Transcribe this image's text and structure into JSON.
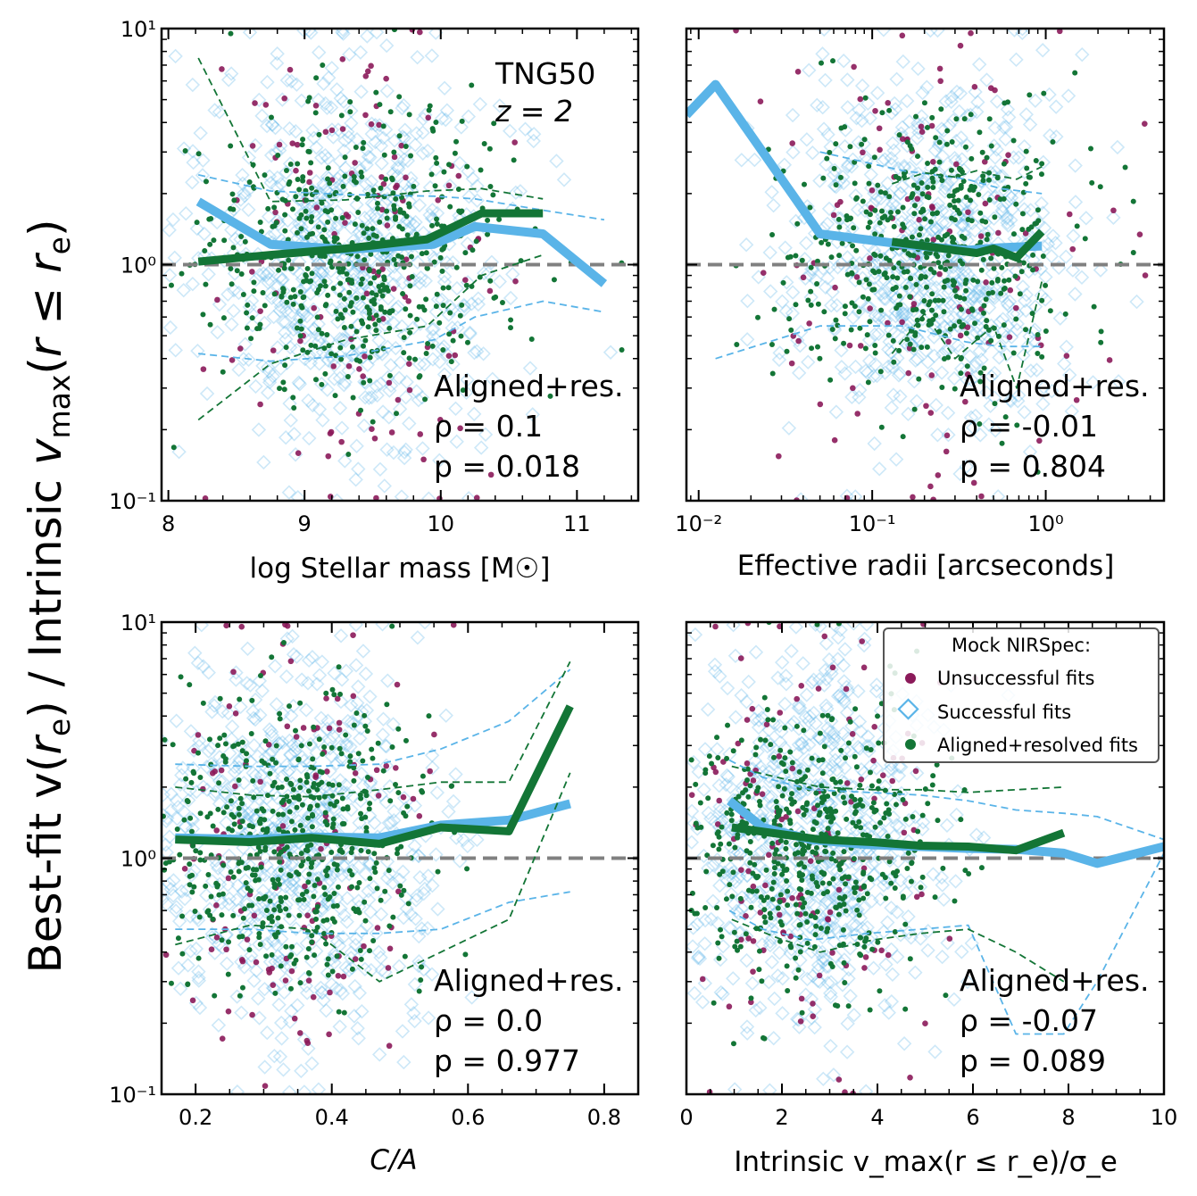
{
  "figure": {
    "ylabel": "Best-fit v(r_e) / Intrinsic v_max(r ≤ r_e)",
    "colors": {
      "unsuccessful": "#8b1a5a",
      "successful": "#5ab4e8",
      "aligned": "#137536",
      "reference": "#808080"
    },
    "legend": {
      "title": "Mock NIRSpec:",
      "items": [
        "Unsuccessful fits",
        "Successful fits",
        "Aligned+resolved fits"
      ]
    }
  },
  "chart_data": [
    {
      "type": "scatter",
      "panel": "top-left",
      "xlabel": "log Stellar mass [M☉]",
      "xscale": "linear",
      "xlim": [
        7.95,
        11.45
      ],
      "xticks": [
        "8",
        "9",
        "10",
        "11"
      ],
      "yscale": "log",
      "ylim": [
        0.1,
        10
      ],
      "yticks": [
        "10⁻¹",
        "10⁰",
        "10¹"
      ],
      "reference_line": 1.0,
      "annotation_top": [
        "TNG50",
        "z = 2"
      ],
      "stats": {
        "label": "Aligned+res.",
        "rho": "ρ = 0.1",
        "p": "p = 0.018"
      },
      "cloud": {
        "x_center": 9.35,
        "x_spread": 0.55,
        "x_range": [
          8.0,
          11.4
        ]
      },
      "series": [
        {
          "name": "Successful fits median",
          "x": [
            8.22,
            8.75,
            9.3,
            9.95,
            10.25,
            10.75,
            11.2
          ],
          "y": [
            1.85,
            1.22,
            1.16,
            1.22,
            1.45,
            1.35,
            0.83
          ]
        },
        {
          "name": "Successful fits 16th pct",
          "x": [
            8.22,
            8.75,
            9.3,
            9.95,
            10.25,
            10.75,
            11.2
          ],
          "y": [
            0.42,
            0.39,
            0.41,
            0.48,
            0.6,
            0.7,
            0.63
          ]
        },
        {
          "name": "Successful fits 84th pct",
          "x": [
            8.22,
            8.75,
            9.3,
            9.95,
            10.25,
            10.75,
            11.2
          ],
          "y": [
            2.4,
            2.05,
            1.98,
            1.95,
            1.9,
            1.7,
            1.55
          ]
        },
        {
          "name": "Aligned median",
          "x": [
            8.22,
            8.75,
            9.3,
            9.9,
            10.3,
            10.75
          ],
          "y": [
            1.03,
            1.1,
            1.17,
            1.28,
            1.65,
            1.65
          ]
        },
        {
          "name": "Aligned 16th pct",
          "x": [
            8.22,
            8.75,
            9.3,
            9.9,
            10.3,
            10.75
          ],
          "y": [
            0.22,
            0.38,
            0.48,
            0.55,
            0.9,
            1.1
          ]
        },
        {
          "name": "Aligned 84th pct",
          "x": [
            8.22,
            8.75,
            9.3,
            9.9,
            10.3,
            10.75
          ],
          "y": [
            7.5,
            1.85,
            1.88,
            2.05,
            2.1,
            1.9
          ]
        }
      ]
    },
    {
      "type": "scatter",
      "panel": "top-right",
      "xlabel": "Effective radii [arcseconds]",
      "xscale": "log",
      "xlim": [
        0.0085,
        4.8
      ],
      "xticks": [
        "10⁻²",
        "10⁻¹",
        "10⁰"
      ],
      "yscale": "log",
      "ylim": [
        0.1,
        10
      ],
      "yticks": [],
      "reference_line": 1.0,
      "stats": {
        "label": "Aligned+res.",
        "rho": "ρ = -0.01",
        "p": "p = 0.804"
      },
      "cloud": {
        "x_center": 0.22,
        "x_spread": 0.42,
        "x_range": [
          0.009,
          4.5
        ]
      },
      "series": [
        {
          "name": "Successful fits median",
          "x": [
            0.0085,
            0.0125,
            0.05,
            0.15,
            0.35,
            0.55,
            0.95
          ],
          "y": [
            4.3,
            5.8,
            1.35,
            1.22,
            1.15,
            1.18,
            1.2
          ]
        },
        {
          "name": "Successful fits 16th pct",
          "x": [
            0.0125,
            0.05,
            0.15,
            0.35,
            0.55,
            0.95
          ],
          "y": [
            0.4,
            0.55,
            0.55,
            0.47,
            0.45,
            0.45
          ]
        },
        {
          "name": "Successful fits 84th pct",
          "x": [
            0.05,
            0.15,
            0.35,
            0.55,
            0.95
          ],
          "y": [
            3.0,
            2.5,
            2.3,
            2.1,
            2.0
          ]
        },
        {
          "name": "Aligned median",
          "x": [
            0.13,
            0.2,
            0.3,
            0.4,
            0.5,
            0.68,
            0.95
          ],
          "y": [
            1.25,
            1.2,
            1.15,
            1.12,
            1.17,
            1.07,
            1.38
          ]
        },
        {
          "name": "Aligned 16th pct",
          "x": [
            0.13,
            0.2,
            0.3,
            0.4,
            0.5,
            0.68,
            0.95
          ],
          "y": [
            0.42,
            0.62,
            0.4,
            0.48,
            0.55,
            0.3,
            0.85
          ]
        },
        {
          "name": "Aligned 84th pct",
          "x": [
            0.13,
            0.2,
            0.3,
            0.4,
            0.5,
            0.68,
            0.95
          ],
          "y": [
            2.2,
            2.45,
            2.35,
            2.5,
            2.4,
            2.3,
            2.6
          ]
        }
      ]
    },
    {
      "type": "scatter",
      "panel": "bottom-left",
      "xlabel": "C/A",
      "xscale": "linear",
      "xlim": [
        0.15,
        0.85
      ],
      "xticks": [
        "0.2",
        "0.4",
        "0.6",
        "0.8"
      ],
      "yscale": "log",
      "ylim": [
        0.1,
        10
      ],
      "yticks": [
        "10⁻¹",
        "10⁰",
        "10¹"
      ],
      "reference_line": 1.0,
      "stats": {
        "label": "Aligned+res.",
        "rho": "ρ = 0.0",
        "p": "p = 0.977"
      },
      "cloud": {
        "x_center": 0.35,
        "x_spread": 0.1,
        "x_range": [
          0.15,
          0.84
        ]
      },
      "series": [
        {
          "name": "Successful fits median",
          "x": [
            0.17,
            0.28,
            0.37,
            0.47,
            0.56,
            0.66,
            0.75
          ],
          "y": [
            1.22,
            1.2,
            1.23,
            1.22,
            1.38,
            1.45,
            1.7
          ]
        },
        {
          "name": "Successful fits 16th pct",
          "x": [
            0.17,
            0.28,
            0.37,
            0.47,
            0.56,
            0.66,
            0.75
          ],
          "y": [
            0.5,
            0.5,
            0.48,
            0.48,
            0.5,
            0.65,
            0.72
          ]
        },
        {
          "name": "Successful fits 84th pct",
          "x": [
            0.17,
            0.28,
            0.37,
            0.47,
            0.56,
            0.66,
            0.75
          ],
          "y": [
            2.5,
            2.45,
            2.45,
            2.5,
            2.9,
            3.8,
            6.3
          ]
        },
        {
          "name": "Aligned median",
          "x": [
            0.17,
            0.28,
            0.37,
            0.47,
            0.56,
            0.66,
            0.75
          ],
          "y": [
            1.2,
            1.17,
            1.22,
            1.15,
            1.35,
            1.3,
            4.4
          ]
        },
        {
          "name": "Aligned 16th pct",
          "x": [
            0.17,
            0.28,
            0.37,
            0.47,
            0.56,
            0.66,
            0.75
          ],
          "y": [
            0.43,
            0.52,
            0.5,
            0.3,
            0.4,
            0.55,
            2.3
          ]
        },
        {
          "name": "Aligned 84th pct",
          "x": [
            0.17,
            0.28,
            0.37,
            0.47,
            0.56,
            0.66,
            0.75
          ],
          "y": [
            2.0,
            1.85,
            1.82,
            1.95,
            2.1,
            2.1,
            6.8
          ]
        }
      ]
    },
    {
      "type": "scatter",
      "panel": "bottom-right",
      "xlabel": "Intrinsic v_max(r ≤ r_e)/σ_e",
      "xscale": "linear",
      "xlim": [
        0,
        10
      ],
      "xticks": [
        "0",
        "2",
        "4",
        "6",
        "8",
        "10"
      ],
      "yscale": "log",
      "ylim": [
        0.1,
        10
      ],
      "yticks": [],
      "reference_line": 1.0,
      "stats": {
        "label": "Aligned+res.",
        "rho": "ρ = -0.07",
        "p": "p = 0.089"
      },
      "cloud": {
        "x_center": 2.6,
        "x_spread": 1.3,
        "x_range": [
          0.1,
          9.9
        ]
      },
      "series": [
        {
          "name": "Successful fits median",
          "x": [
            0.9,
            1.6,
            2.6,
            3.8,
            4.9,
            5.9,
            6.9,
            7.9,
            8.6,
            10.0
          ],
          "y": [
            1.75,
            1.35,
            1.2,
            1.14,
            1.12,
            1.1,
            1.09,
            1.05,
            0.95,
            1.12
          ]
        },
        {
          "name": "Successful fits 16th pct",
          "x": [
            0.9,
            1.6,
            2.6,
            3.8,
            4.9,
            5.9,
            6.9,
            7.9,
            8.6,
            10.0
          ],
          "y": [
            0.6,
            0.5,
            0.45,
            0.48,
            0.5,
            0.52,
            0.18,
            0.18,
            0.3,
            1.05
          ]
        },
        {
          "name": "Successful fits 84th pct",
          "x": [
            0.9,
            1.6,
            2.6,
            3.8,
            4.9,
            5.9,
            6.9,
            7.9,
            8.6,
            10.0
          ],
          "y": [
            2.6,
            2.2,
            1.95,
            1.9,
            1.85,
            1.75,
            1.6,
            1.55,
            1.5,
            1.2
          ]
        },
        {
          "name": "Aligned median",
          "x": [
            0.95,
            1.9,
            2.8,
            3.9,
            4.9,
            5.9,
            6.9,
            7.9
          ],
          "y": [
            1.35,
            1.27,
            1.2,
            1.17,
            1.13,
            1.12,
            1.08,
            1.28
          ]
        },
        {
          "name": "Aligned 16th pct",
          "x": [
            0.95,
            1.9,
            2.8,
            3.9,
            4.9,
            5.9,
            6.9,
            7.9
          ],
          "y": [
            0.55,
            0.46,
            0.4,
            0.45,
            0.48,
            0.5,
            0.4,
            0.3
          ]
        },
        {
          "name": "Aligned 84th pct",
          "x": [
            0.95,
            1.9,
            2.8,
            3.9,
            4.9,
            5.9,
            6.9,
            7.9
          ],
          "y": [
            2.45,
            2.2,
            2.0,
            1.95,
            1.95,
            1.9,
            1.95,
            2.0
          ]
        }
      ]
    }
  ]
}
